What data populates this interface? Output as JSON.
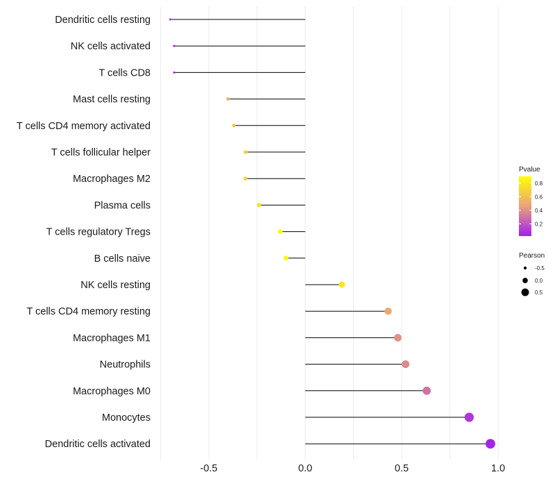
{
  "chart_data": {
    "type": "lollipop",
    "xlabel": "",
    "ylabel": "",
    "xlim": [
      -0.75,
      1.0
    ],
    "xticks": [
      -0.5,
      0.0,
      0.5,
      1.0
    ],
    "xtick_labels": [
      "-0.5",
      "0.0",
      "0.5",
      "1.0"
    ],
    "colors": {
      "low": "#a020f0",
      "mid": "#e8a27a",
      "high": "#ffff00",
      "stem": "#000000",
      "grid": "#ebebeb"
    },
    "series": [
      {
        "name": "Dendritic cells resting",
        "pearson": -0.7,
        "pvalue": 0.05
      },
      {
        "name": "NK cells activated",
        "pearson": -0.68,
        "pvalue": 0.06
      },
      {
        "name": "T cells CD8",
        "pearson": -0.68,
        "pvalue": 0.07
      },
      {
        "name": "Mast cells resting",
        "pearson": -0.4,
        "pvalue": 0.55
      },
      {
        "name": "T cells CD4 memory activated",
        "pearson": -0.37,
        "pvalue": 0.62
      },
      {
        "name": "T cells follicular helper",
        "pearson": -0.31,
        "pvalue": 0.7
      },
      {
        "name": "Macrophages M2",
        "pearson": -0.31,
        "pvalue": 0.7
      },
      {
        "name": "Plasma cells",
        "pearson": -0.24,
        "pvalue": 0.76
      },
      {
        "name": "T cells regulatory  Tregs",
        "pearson": -0.13,
        "pvalue": 0.88
      },
      {
        "name": "B cells naive",
        "pearson": -0.1,
        "pvalue": 0.87
      },
      {
        "name": "NK cells resting",
        "pearson": 0.19,
        "pvalue": 0.78
      },
      {
        "name": "T cells CD4 memory resting",
        "pearson": 0.43,
        "pvalue": 0.5
      },
      {
        "name": "Macrophages M1",
        "pearson": 0.48,
        "pvalue": 0.4
      },
      {
        "name": "Neutrophils",
        "pearson": 0.52,
        "pvalue": 0.38
      },
      {
        "name": "Macrophages M0",
        "pearson": 0.63,
        "pvalue": 0.3
      },
      {
        "name": "Monocytes",
        "pearson": 0.85,
        "pvalue": 0.1
      },
      {
        "name": "Dendritic cells activated",
        "pearson": 0.96,
        "pvalue": 0.04
      }
    ],
    "legend": {
      "pvalue_title": "Pvalue",
      "pvalue_ticks": [
        0.8,
        0.6,
        0.4,
        0.2
      ],
      "pvalue_tick_labels": [
        "0.8",
        "0.6",
        "0.4",
        "0.2"
      ],
      "pvalue_range": [
        0.02,
        0.9
      ],
      "pearson_title": "Pearson",
      "pearson_values": [
        -0.5,
        0.0,
        0.5
      ],
      "pearson_labels": [
        "-0.5",
        "0.0",
        "0.5"
      ],
      "placement": "right"
    }
  }
}
